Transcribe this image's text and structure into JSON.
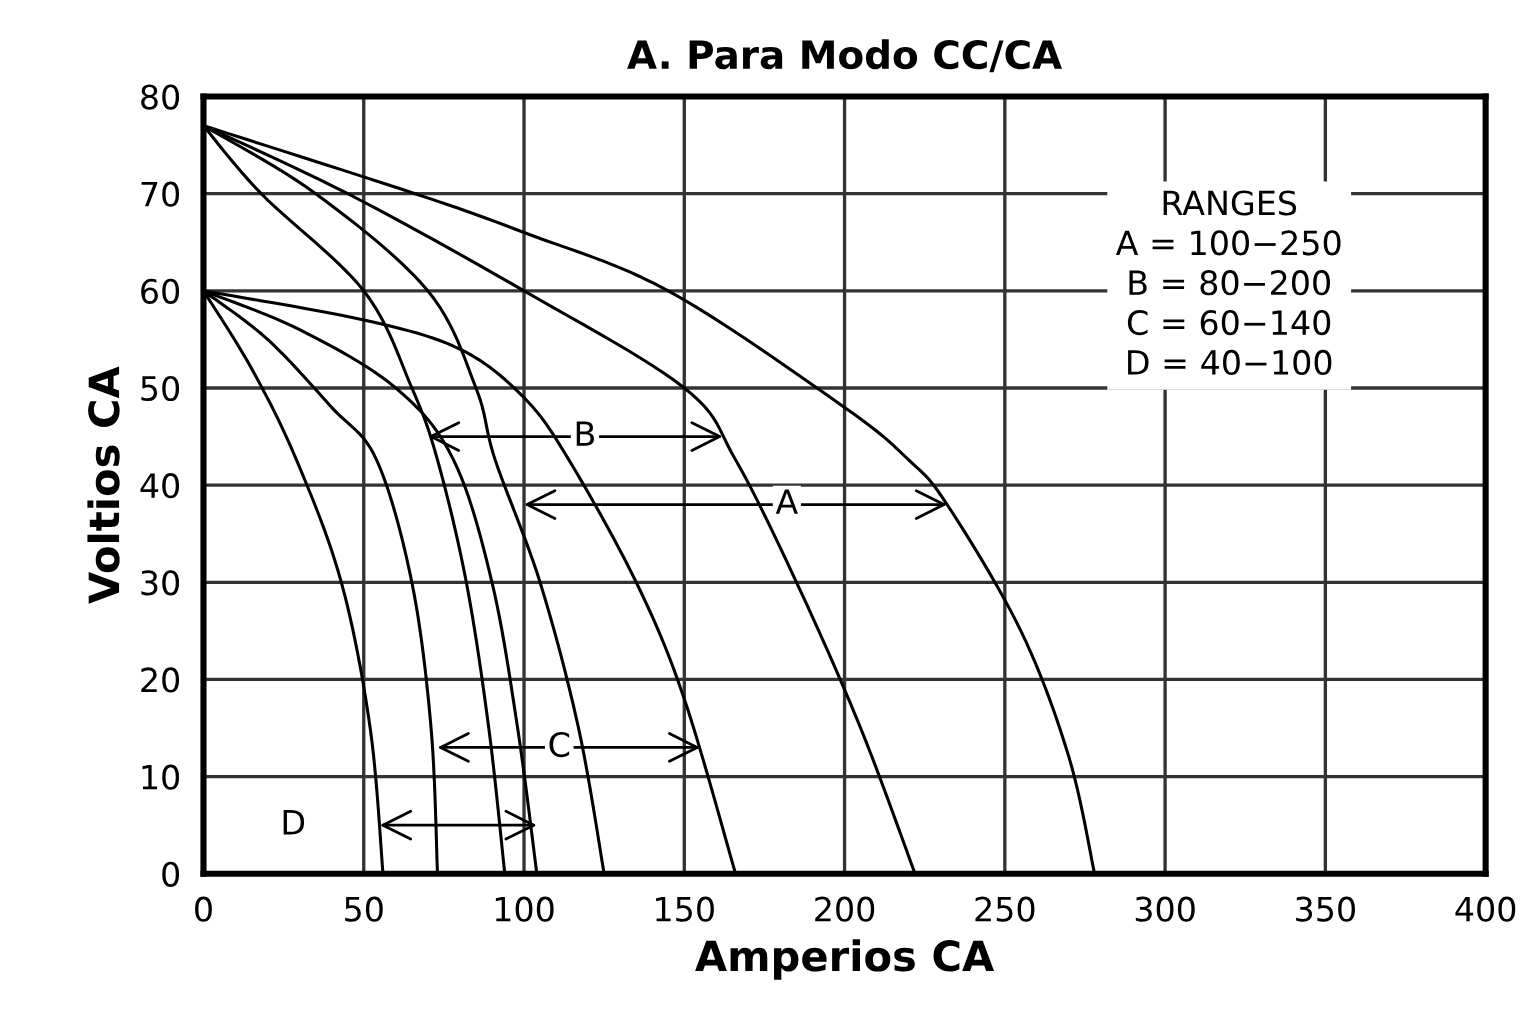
{
  "chart_data": {
    "type": "line",
    "title": "A. Para Modo CC/CA",
    "xlabel": "Amperios CA",
    "ylabel": "Voltios CA",
    "xlim": [
      0,
      400
    ],
    "ylim": [
      0,
      80
    ],
    "xticks": [
      0,
      50,
      100,
      150,
      200,
      250,
      300,
      350,
      400
    ],
    "yticks": [
      0,
      10,
      20,
      30,
      40,
      50,
      60,
      70,
      80
    ],
    "grid": true,
    "marker": "none",
    "line_style": "solid",
    "annotations": [
      "RANGES",
      "A = 100−250",
      "B = 80−200",
      "C = 60−140",
      "D = 40−100",
      {
        "text": "A",
        "x": 182,
        "y": 38
      },
      {
        "text": "B",
        "x": 119,
        "y": 45
      },
      {
        "text": "C",
        "x": 111,
        "y": 13
      },
      {
        "text": "D",
        "x": 28,
        "y": 5
      }
    ],
    "series": [
      {
        "color": "#000000",
        "x": [
          0,
          66,
          100,
          145,
          200,
          220,
          232,
          255,
          270,
          278
        ],
        "values": [
          77,
          70,
          66,
          60,
          48,
          42.6,
          38,
          25,
          12,
          0
        ]
      },
      {
        "color": "#000000",
        "x": [
          0,
          45,
          100,
          150,
          166,
          185,
          205,
          222
        ],
        "values": [
          77,
          70,
          60,
          50,
          42.6,
          30,
          15,
          0
        ]
      },
      {
        "color": "#000000",
        "x": [
          0,
          35,
          70,
          85,
          91,
          105,
          117,
          125
        ],
        "values": [
          77,
          70,
          60,
          50,
          42.6,
          30,
          15,
          0
        ]
      },
      {
        "color": "#000000",
        "x": [
          0,
          18,
          50,
          65,
          73,
          82,
          89,
          94
        ],
        "values": [
          77,
          70,
          60,
          50,
          42.6,
          30,
          15,
          0
        ]
      },
      {
        "color": "#000000",
        "x": [
          0,
          50,
          80,
          100,
          114,
          135,
          150,
          166
        ],
        "values": [
          60,
          57,
          54,
          49,
          42.6,
          30,
          18,
          0
        ]
      },
      {
        "color": "#000000",
        "x": [
          0,
          30,
          60,
          78,
          90,
          98,
          104
        ],
        "values": [
          60,
          56,
          50,
          42.6,
          30,
          15,
          0
        ]
      },
      {
        "color": "#000000",
        "x": [
          0,
          20,
          40,
          54,
          65,
          71,
          73
        ],
        "values": [
          60,
          55,
          48,
          42.6,
          30,
          15,
          0
        ]
      },
      {
        "color": "#000000",
        "x": [
          0,
          15,
          29,
          43,
          52,
          56
        ],
        "values": [
          60,
          52,
          42.6,
          30,
          15,
          0
        ]
      },
      {
        "type": "line",
        "color": "#000000",
        "x": [
          100,
          232
        ],
        "values": [
          38,
          38
        ]
      },
      {
        "type": "line",
        "color": "#000000",
        "x": [
          70,
          162
        ],
        "values": [
          45,
          45
        ]
      },
      {
        "type": "line",
        "color": "#000000",
        "x": [
          73,
          155
        ],
        "values": [
          13,
          13
        ]
      },
      {
        "type": "line",
        "color": "#000000",
        "x": [
          55,
          104
        ],
        "values": [
          5,
          5
        ]
      }
    ]
  }
}
